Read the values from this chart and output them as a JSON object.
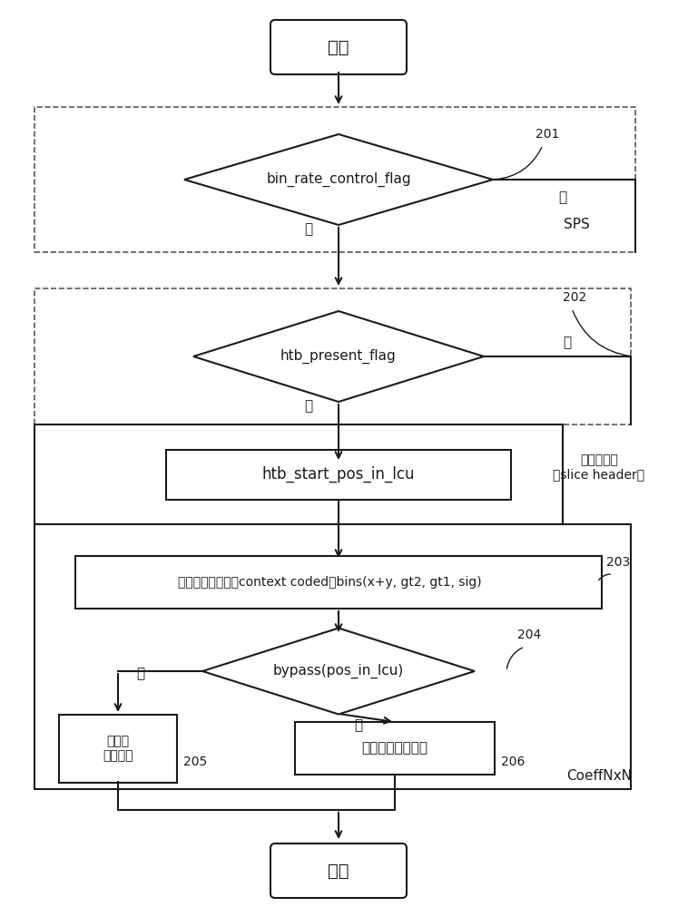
{
  "bg_color": "#ffffff",
  "line_color": "#1a1a1a",
  "text_color": "#1a1a1a",
  "fig_width": 7.47,
  "fig_height": 10.0,
  "start_text": "开始",
  "end_text": "结束",
  "d1_text": "bin_rate_control_flag",
  "d1_label": "201",
  "d2_text": "htb_present_flag",
  "d2_label": "202",
  "htb_text": "htb_start_pos_in_lcu",
  "ctx_text": "上下文编码模式（context coded）bins(x+y, gt2, gt1, sig)",
  "ctx_label": "203",
  "d3_text": "bypass(pos_in_lcu)",
  "d3_label": "204",
  "ctx2_text": "上下文\n编码模式",
  "ctx2_label": "205",
  "bypass_text": "旁路组合编码模式",
  "bypass_label": "206",
  "sps_label": "SPS",
  "no_label": "否",
  "yes_label": "是",
  "slice_label": "分片头信息\n（slice header）",
  "coeff_label": "CoeffNxN"
}
